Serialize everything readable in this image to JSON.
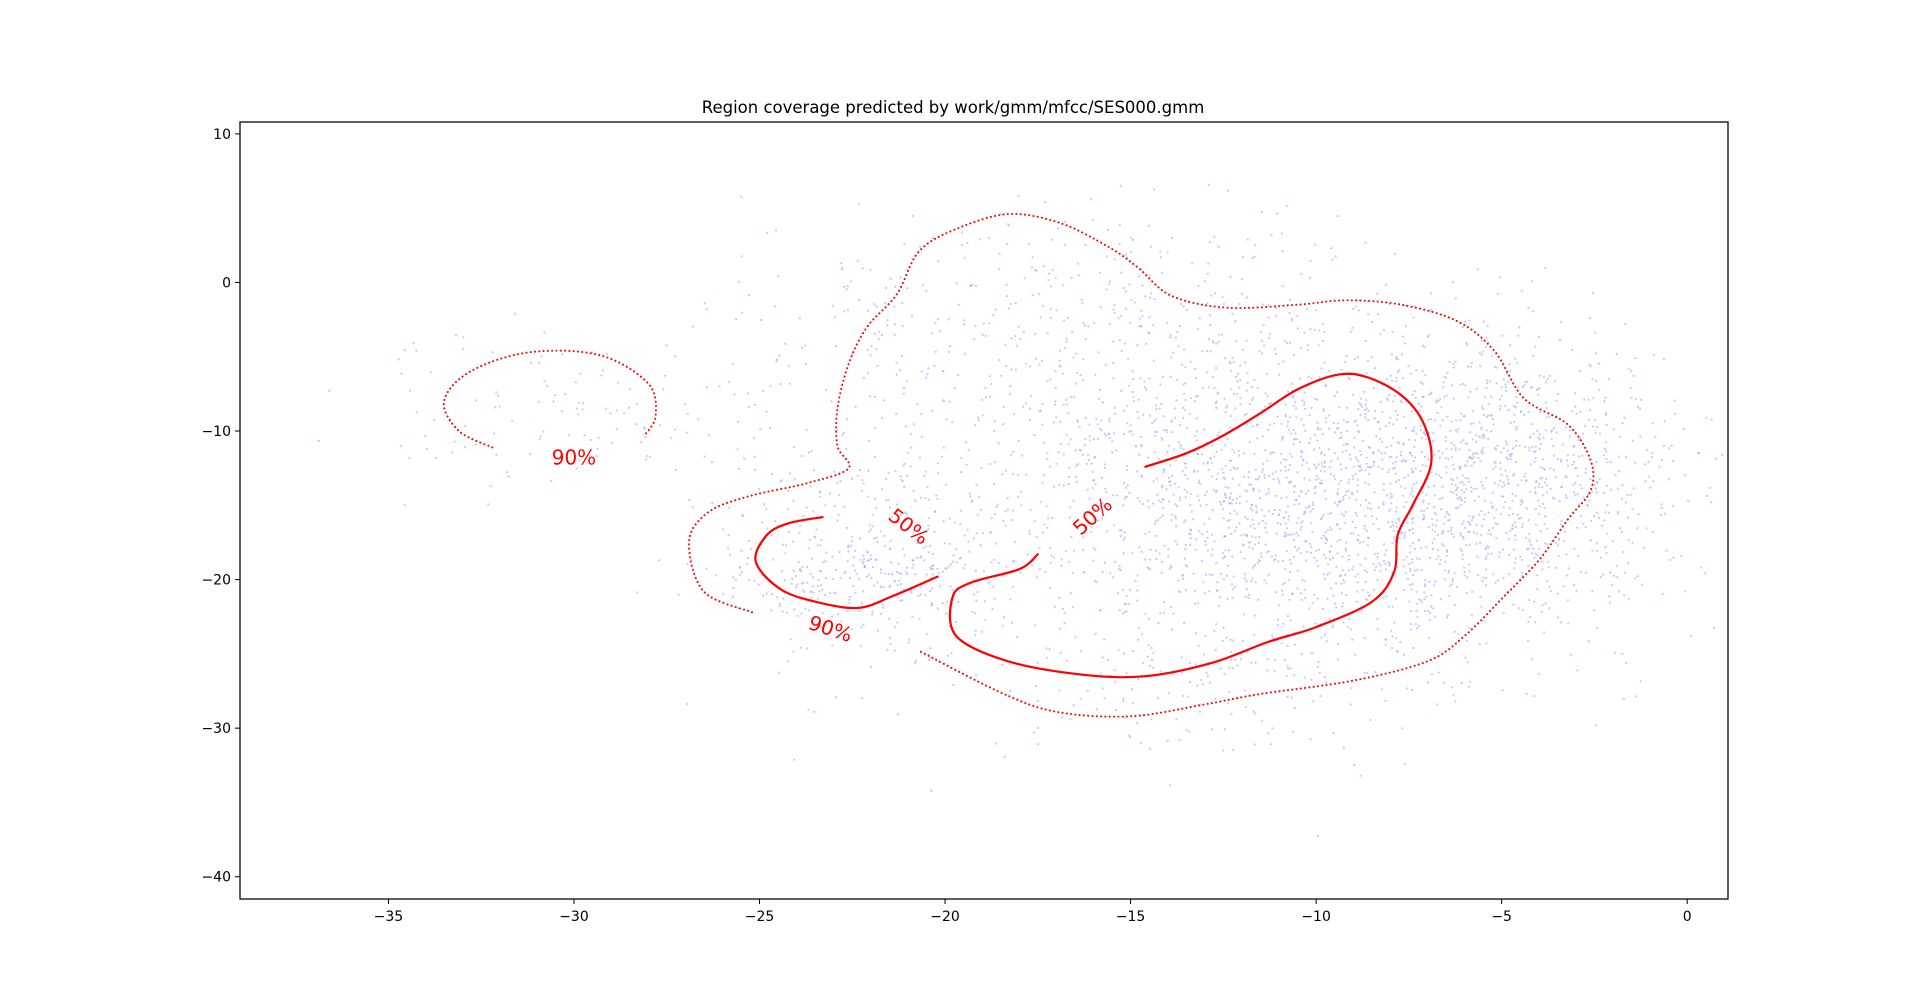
{
  "chart_data": {
    "type": "scatter",
    "title": "Region coverage predicted by work/gmm/mfcc/SES000.gmm",
    "xlabel": "",
    "ylabel": "",
    "xlim": [
      -39.0,
      1.1
    ],
    "ylim": [
      -41.5,
      10.8
    ],
    "xticks": [
      -35,
      -30,
      -25,
      -20,
      -15,
      -10,
      -5,
      0
    ],
    "yticks": [
      10,
      0,
      -10,
      -20,
      -30,
      -40
    ],
    "grid": false,
    "legend": "none",
    "colors": {
      "points": "#9999ff",
      "contours": "#ff0000",
      "frame": "#000000"
    },
    "scatter": {
      "seed": 7,
      "point_opacity": 0.55,
      "clusters": [
        {
          "cx": -9.0,
          "cy": -15.0,
          "sx": 4.2,
          "sy": 5.5,
          "n": 1800
        },
        {
          "cx": -5.0,
          "cy": -12.0,
          "sx": 2.0,
          "sy": 4.5,
          "n": 450
        },
        {
          "cx": -14.0,
          "cy": -10.0,
          "sx": 3.5,
          "sy": 5.0,
          "n": 450
        },
        {
          "cx": -22.0,
          "cy": -19.5,
          "sx": 2.0,
          "sy": 2.8,
          "n": 380
        },
        {
          "cx": -21.5,
          "cy": -11.0,
          "sx": 3.0,
          "sy": 6.0,
          "n": 220
        },
        {
          "cx": -31.0,
          "cy": -8.5,
          "sx": 2.6,
          "sy": 2.8,
          "n": 110
        },
        {
          "cx": -17.0,
          "cy": 0.0,
          "sx": 4.0,
          "sy": 3.0,
          "n": 220
        },
        {
          "cx": -13.0,
          "cy": -27.0,
          "sx": 3.5,
          "sy": 2.5,
          "n": 150
        }
      ]
    },
    "contours": [
      {
        "label": "50%",
        "style": "solid",
        "points": [
          [
            -14.6,
            -12.4
          ],
          [
            -13.5,
            -11.5
          ],
          [
            -12.5,
            -10.3
          ],
          [
            -11.5,
            -8.8
          ],
          [
            -10.5,
            -7.2
          ],
          [
            -9.4,
            -6.2
          ],
          [
            -8.6,
            -6.4
          ],
          [
            -7.7,
            -7.6
          ],
          [
            -7.1,
            -9.5
          ],
          [
            -6.9,
            -12.2
          ],
          [
            -7.4,
            -15.0
          ],
          [
            -7.8,
            -17.0
          ],
          [
            -7.9,
            -19.5
          ],
          [
            -8.5,
            -21.5
          ],
          [
            -10.0,
            -23.2
          ],
          [
            -11.3,
            -24.2
          ],
          [
            -12.8,
            -25.6
          ],
          [
            -14.6,
            -26.5
          ],
          [
            -16.3,
            -26.4
          ],
          [
            -18.3,
            -25.5
          ],
          [
            -19.7,
            -23.8
          ],
          [
            -19.8,
            -21.2
          ],
          [
            -19.3,
            -20.2
          ],
          [
            -18.0,
            -19.3
          ],
          [
            -17.5,
            -18.3
          ]
        ]
      },
      {
        "label": "50%",
        "style": "solid",
        "points": [
          [
            -23.3,
            -15.8
          ],
          [
            -24.2,
            -16.2
          ],
          [
            -24.8,
            -17.0
          ],
          [
            -25.1,
            -18.8
          ],
          [
            -24.4,
            -20.7
          ],
          [
            -23.3,
            -21.6
          ],
          [
            -22.3,
            -21.9
          ],
          [
            -21.4,
            -21.1
          ],
          [
            -20.2,
            -19.8
          ]
        ]
      },
      {
        "label": "90%",
        "style": "dotted",
        "points": [
          [
            -32.2,
            -11.1
          ],
          [
            -33.1,
            -10.0
          ],
          [
            -33.5,
            -8.0
          ],
          [
            -32.8,
            -6.0
          ],
          [
            -31.2,
            -4.7
          ],
          [
            -29.3,
            -4.9
          ],
          [
            -28.0,
            -6.8
          ],
          [
            -27.8,
            -9.0
          ],
          [
            -28.1,
            -10.3
          ]
        ]
      },
      {
        "label": "90%",
        "style": "dotted",
        "points": [
          [
            -25.2,
            -22.2
          ],
          [
            -26.5,
            -20.8
          ],
          [
            -26.9,
            -17.5
          ],
          [
            -26.4,
            -15.5
          ],
          [
            -25.3,
            -14.4
          ],
          [
            -23.7,
            -13.5
          ],
          [
            -22.6,
            -12.5
          ],
          [
            -22.9,
            -11.0
          ],
          [
            -22.9,
            -8.5
          ],
          [
            -22.6,
            -5.5
          ],
          [
            -22.1,
            -3.0
          ],
          [
            -21.3,
            -0.8
          ],
          [
            -20.7,
            2.1
          ],
          [
            -19.7,
            3.6
          ],
          [
            -18.3,
            4.6
          ],
          [
            -16.9,
            4.0
          ],
          [
            -15.6,
            2.4
          ],
          [
            -14.8,
            1.0
          ],
          [
            -13.9,
            -0.9
          ],
          [
            -12.4,
            -1.7
          ],
          [
            -10.5,
            -1.5
          ],
          [
            -9.2,
            -1.2
          ],
          [
            -7.7,
            -1.5
          ],
          [
            -6.2,
            -2.6
          ],
          [
            -5.2,
            -4.6
          ],
          [
            -4.4,
            -7.8
          ],
          [
            -3.2,
            -9.6
          ],
          [
            -2.6,
            -12.0
          ],
          [
            -2.6,
            -14.0
          ],
          [
            -3.2,
            -15.9
          ],
          [
            -4.0,
            -18.7
          ],
          [
            -5.0,
            -21.3
          ],
          [
            -6.0,
            -23.8
          ],
          [
            -7.0,
            -25.5
          ],
          [
            -9.0,
            -26.8
          ],
          [
            -11.5,
            -27.7
          ],
          [
            -13.0,
            -28.4
          ],
          [
            -15.0,
            -29.2
          ],
          [
            -17.0,
            -28.9
          ],
          [
            -18.5,
            -27.6
          ],
          [
            -20.7,
            -24.8
          ]
        ]
      }
    ],
    "contour_labels": [
      {
        "text": "90%",
        "x": -30.0,
        "y": -11.9,
        "angle": 0
      },
      {
        "text": "90%",
        "x": -23.1,
        "y": -23.4,
        "angle": 18
      },
      {
        "text": "50%",
        "x": -21.0,
        "y": -16.5,
        "angle": 38
      },
      {
        "text": "50%",
        "x": -16.0,
        "y": -15.8,
        "angle": -42
      }
    ]
  }
}
